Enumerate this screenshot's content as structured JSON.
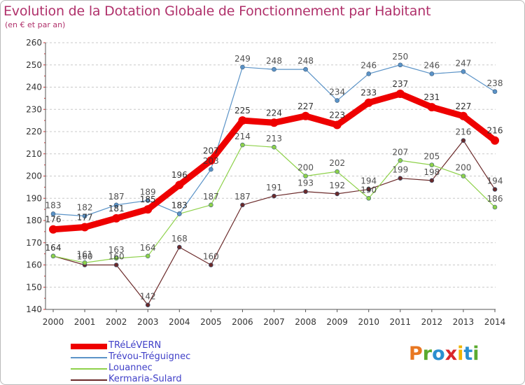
{
  "title": "Evolution de la Dotation Globale de Fonctionnement par Habitant",
  "subtitle": "(en € et par an)",
  "logo": {
    "text": "Proxiti",
    "letters": [
      {
        "ch": "P",
        "color": "#e87722"
      },
      {
        "ch": "r",
        "color": "#5aaa2e"
      },
      {
        "ch": "o",
        "color": "#2a8fd0"
      },
      {
        "ch": "x",
        "color": "#d9262a"
      },
      {
        "ch": "i",
        "color": "#f0b400"
      },
      {
        "ch": "t",
        "color": "#2a8fd0"
      },
      {
        "ch": "i",
        "color": "#5aaa2e"
      }
    ]
  },
  "chart_data": {
    "type": "line",
    "title": "Evolution de la Dotation Globale de Fonctionnement par Habitant",
    "subtitle": "(en € et par an)",
    "x": [
      "2000",
      "2001",
      "2002",
      "2003",
      "2004",
      "2005",
      "2006",
      "2007",
      "2008",
      "2009",
      "2010",
      "2011",
      "2012",
      "2013",
      "2014"
    ],
    "ylim": [
      140,
      260
    ],
    "yticks": [
      140,
      150,
      160,
      170,
      180,
      190,
      200,
      210,
      220,
      230,
      240,
      250,
      260
    ],
    "grid": "horizontal-dashed",
    "legend_position": "bottom-left",
    "series": [
      {
        "name": "TRéLéVERN",
        "color": "#ee0000",
        "values": [
          176,
          177,
          181,
          185,
          196,
          207,
          225,
          224,
          227,
          223,
          233,
          237,
          231,
          227,
          216
        ]
      },
      {
        "name": "Trévou-Tréguignec",
        "color": "#5b93c7",
        "values": [
          183,
          182,
          187,
          189,
          183,
          203,
          249,
          248,
          248,
          234,
          246,
          250,
          246,
          247,
          238
        ]
      },
      {
        "name": "Louannec",
        "color": "#8ed14a",
        "values": [
          164,
          161,
          163,
          164,
          183,
          187,
          214,
          213,
          200,
          202,
          190,
          207,
          205,
          200,
          186
        ]
      },
      {
        "name": "Kermaria-Sulard",
        "color": "#6b2a2a",
        "values": [
          164,
          160,
          160,
          142,
          168,
          160,
          187,
          191,
          193,
          192,
          194,
          199,
          198,
          216,
          194
        ]
      }
    ]
  }
}
